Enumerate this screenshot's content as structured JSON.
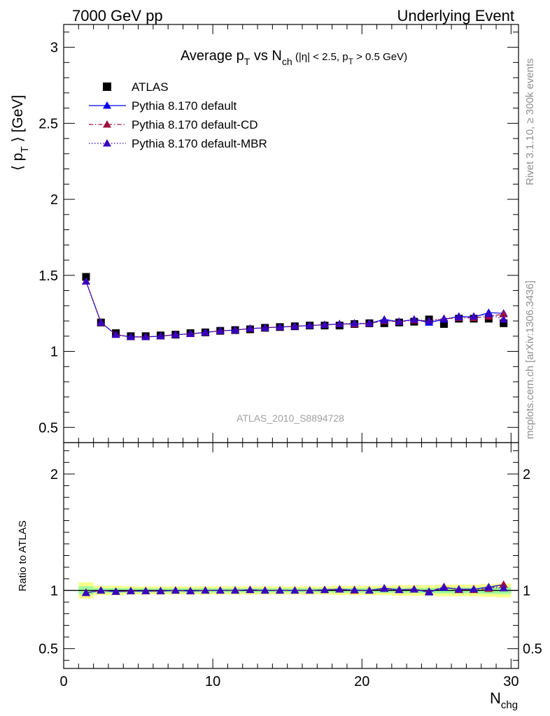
{
  "header": {
    "left": "7000 GeV pp",
    "right": "Underlying Event"
  },
  "side": {
    "rivet": "Rivet 3.1.10, ≥ 300k events",
    "mcplots": "mcplots.cern.ch [arXiv:1306.3436]"
  },
  "colors": {
    "atlas": "#000000",
    "default": "#0000ee",
    "cd": "#a0103c",
    "mbr": "#3a00c0",
    "band_outer": "#f5ff8a",
    "band_inner": "#9dfa9d"
  },
  "chart_data": [
    {
      "type": "scatter",
      "title": {
        "main": "Average p",
        "sub1": "T",
        "mid": " vs N",
        "sub2": "ch",
        "tail": " (|η| < 2.5, p",
        "sub3": "T",
        "end": " > 0.5 GeV)"
      },
      "ylabel": {
        "pre": "⟨ p",
        "sub": "T",
        "post": " ⟩ [GeV]"
      },
      "watermark": "ATLAS_2010_S8894728",
      "xlim": [
        0,
        30.5
      ],
      "ylim": [
        0.4,
        3.15
      ],
      "yticks": [
        0.5,
        1,
        1.5,
        2,
        2.5,
        3
      ],
      "ytick_labels": [
        "0.5",
        "1",
        "1.5",
        "2",
        "2.5",
        "3"
      ],
      "legend_position": "top-left",
      "x": [
        1.5,
        2.5,
        3.5,
        4.5,
        5.5,
        6.5,
        7.5,
        8.5,
        9.5,
        10.5,
        11.5,
        12.5,
        13.5,
        14.5,
        15.5,
        16.5,
        17.5,
        18.5,
        19.5,
        20.5,
        21.5,
        22.5,
        23.5,
        24.5,
        25.5,
        26.5,
        27.5,
        28.5,
        29.5
      ],
      "series": [
        {
          "name": "ATLAS",
          "key": "atlas",
          "marker": "square",
          "values": [
            1.49,
            1.19,
            1.12,
            1.1,
            1.1,
            1.105,
            1.11,
            1.12,
            1.125,
            1.135,
            1.14,
            1.145,
            1.155,
            1.16,
            1.165,
            1.17,
            1.17,
            1.17,
            1.18,
            1.185,
            1.185,
            1.19,
            1.195,
            1.21,
            1.18,
            1.215,
            1.215,
            1.215,
            1.185
          ]
        },
        {
          "name": "Pythia 8.170 default",
          "key": "default",
          "marker": "triangle",
          "line": "solid",
          "values": [
            1.46,
            1.19,
            1.11,
            1.095,
            1.095,
            1.1,
            1.11,
            1.115,
            1.125,
            1.135,
            1.14,
            1.15,
            1.155,
            1.16,
            1.165,
            1.17,
            1.175,
            1.18,
            1.18,
            1.185,
            1.21,
            1.195,
            1.21,
            1.19,
            1.21,
            1.23,
            1.225,
            1.255,
            1.25
          ]
        },
        {
          "name": "Pythia 8.170 default-CD",
          "key": "cd",
          "marker": "triangle",
          "line": "dashdot",
          "values": [
            1.46,
            1.19,
            1.11,
            1.095,
            1.095,
            1.1,
            1.11,
            1.115,
            1.125,
            1.135,
            1.14,
            1.15,
            1.155,
            1.16,
            1.165,
            1.17,
            1.175,
            1.18,
            1.18,
            1.185,
            1.2,
            1.195,
            1.205,
            1.2,
            1.215,
            1.22,
            1.22,
            1.23,
            1.245
          ]
        },
        {
          "name": "Pythia 8.170 default-MBR",
          "key": "mbr",
          "marker": "triangle",
          "line": "dotted",
          "values": [
            1.46,
            1.19,
            1.11,
            1.095,
            1.095,
            1.1,
            1.11,
            1.115,
            1.125,
            1.135,
            1.14,
            1.15,
            1.155,
            1.16,
            1.165,
            1.17,
            1.175,
            1.18,
            1.185,
            1.185,
            1.205,
            1.195,
            1.21,
            1.2,
            1.215,
            1.225,
            1.23,
            1.245,
            1.21
          ]
        }
      ]
    },
    {
      "type": "scatter",
      "ylabel": "Ratio to ATLAS",
      "xlabel": {
        "pre": "N",
        "sub": "chg"
      },
      "xlim": [
        0,
        30.5
      ],
      "ylim": [
        0.33,
        2.27
      ],
      "xticks": [
        0,
        10,
        20,
        30
      ],
      "xtick_labels": [
        "0",
        "10",
        "20",
        "30"
      ],
      "yticks": [
        0.5,
        1,
        2
      ],
      "ytick_labels": [
        "0.5",
        "1",
        "2"
      ],
      "reference_line": 1,
      "band_outer": [
        0.07,
        0.04,
        0.04,
        0.035,
        0.035,
        0.035,
        0.035,
        0.035,
        0.035,
        0.035,
        0.035,
        0.035,
        0.035,
        0.035,
        0.035,
        0.035,
        0.035,
        0.04,
        0.04,
        0.04,
        0.04,
        0.045,
        0.045,
        0.045,
        0.05,
        0.05,
        0.05,
        0.055,
        0.06
      ],
      "band_inner": [
        0.035,
        0.02,
        0.02,
        0.018,
        0.018,
        0.018,
        0.018,
        0.018,
        0.018,
        0.018,
        0.018,
        0.018,
        0.018,
        0.018,
        0.018,
        0.018,
        0.018,
        0.02,
        0.02,
        0.02,
        0.02,
        0.022,
        0.022,
        0.022,
        0.025,
        0.025,
        0.025,
        0.028,
        0.03
      ],
      "series": [
        {
          "name": "Pythia 8.170 default",
          "key": "default",
          "values": [
            0.98,
            1.0,
            0.99,
            0.995,
            0.995,
            0.995,
            1.0,
            0.995,
            1.0,
            1.0,
            1.0,
            1.005,
            1.0,
            1.0,
            1.0,
            1.0,
            1.005,
            1.01,
            1.0,
            1.0,
            1.02,
            1.005,
            1.01,
            0.985,
            1.025,
            1.01,
            1.01,
            1.03,
            1.05
          ]
        },
        {
          "name": "Pythia 8.170 default-CD",
          "key": "cd",
          "values": [
            0.98,
            1.0,
            0.99,
            0.995,
            0.995,
            0.995,
            1.0,
            0.995,
            1.0,
            1.0,
            1.0,
            1.005,
            1.0,
            1.0,
            1.0,
            1.0,
            1.005,
            1.01,
            1.0,
            1.0,
            1.015,
            1.005,
            1.01,
            0.99,
            1.03,
            1.005,
            1.005,
            1.015,
            1.05
          ]
        },
        {
          "name": "Pythia 8.170 default-MBR",
          "key": "mbr",
          "values": [
            0.98,
            1.0,
            0.99,
            0.995,
            0.995,
            0.995,
            1.0,
            0.995,
            1.0,
            1.0,
            1.0,
            1.005,
            1.0,
            1.0,
            1.0,
            1.0,
            1.005,
            1.01,
            1.005,
            1.0,
            1.015,
            1.005,
            1.01,
            0.99,
            1.03,
            1.01,
            1.012,
            1.025,
            1.02
          ]
        }
      ]
    }
  ]
}
